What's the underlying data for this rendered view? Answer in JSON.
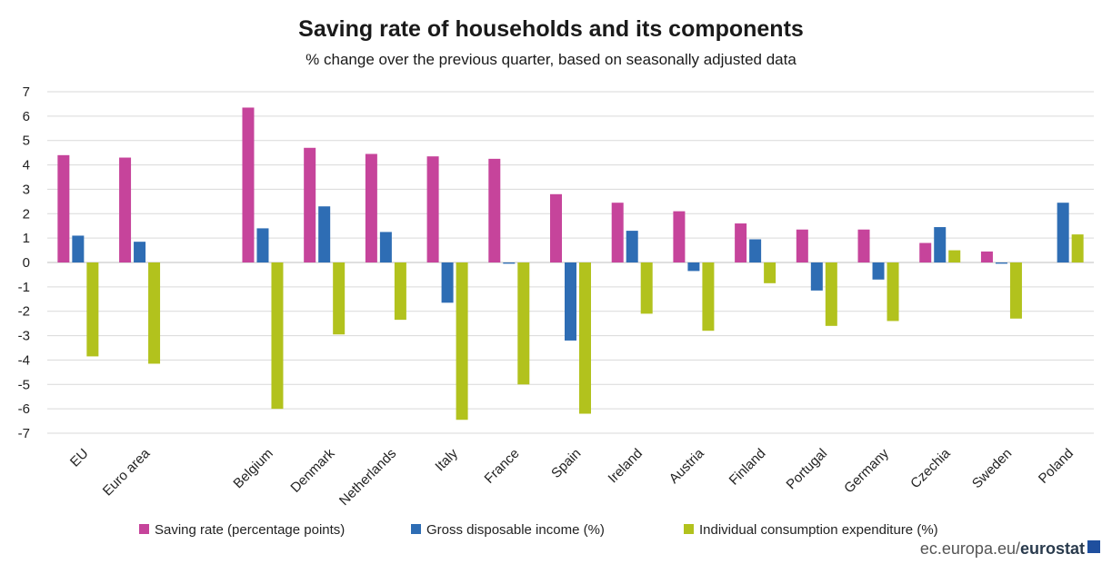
{
  "chart_data": {
    "type": "bar",
    "title": "Saving rate of households and its components",
    "subtitle": "% change over the previous quarter, based on seasonally adjusted data",
    "xlabel": "",
    "ylabel": "",
    "ylim": [
      -7,
      7
    ],
    "yticks": [
      7,
      6,
      5,
      4,
      3,
      2,
      1,
      0,
      -1,
      -2,
      -3,
      -4,
      -5,
      -6,
      -7
    ],
    "grid": true,
    "legend_position": "bottom",
    "categories": [
      "EU",
      "Euro area",
      "",
      "Belgium",
      "Denmark",
      "Netherlands",
      "Italy",
      "France",
      "Spain",
      "Ireland",
      "Austria",
      "Finland",
      "Portugal",
      "Germany",
      "Czechia",
      "Sweden",
      "Poland"
    ],
    "series": [
      {
        "name": "Saving rate (percentage points)",
        "color": "#c6449b",
        "values": [
          4.4,
          4.3,
          null,
          6.35,
          4.7,
          4.45,
          4.35,
          4.25,
          2.8,
          2.45,
          2.1,
          1.6,
          1.35,
          1.35,
          0.8,
          0.45,
          0.0
        ]
      },
      {
        "name": "Gross disposable income (%)",
        "color": "#2e6db4",
        "values": [
          1.1,
          0.85,
          null,
          1.4,
          2.3,
          1.25,
          -1.65,
          -0.05,
          -3.2,
          1.3,
          -0.35,
          0.95,
          -1.15,
          -0.7,
          1.45,
          -0.05,
          2.45
        ]
      },
      {
        "name": "Individual consumption expenditure (%)",
        "color": "#b2c21d",
        "values": [
          -3.85,
          -4.15,
          null,
          -6.0,
          -2.95,
          -2.35,
          -6.45,
          -5.0,
          -6.2,
          -2.1,
          -2.8,
          -0.85,
          -2.6,
          -2.4,
          0.5,
          -2.3,
          1.15
        ]
      }
    ]
  },
  "source": {
    "prefix": "ec.europa.eu/",
    "brand": "eurostat"
  },
  "colors": {
    "grid": "#d9d9d9",
    "axis": "#bfbfbf",
    "eu_flag": "#1f4f9e"
  }
}
